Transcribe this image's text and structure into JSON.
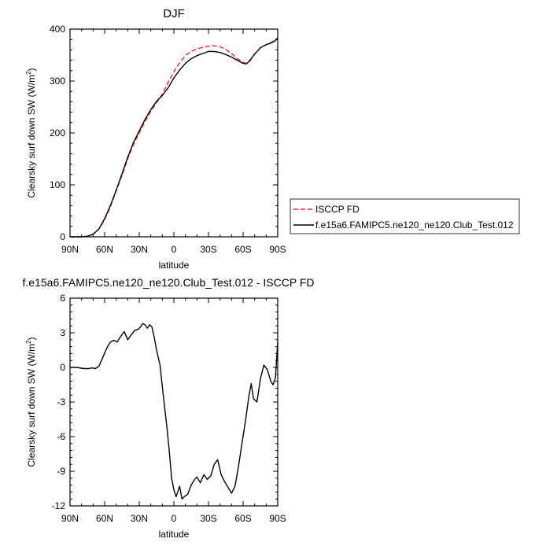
{
  "chart_data": [
    {
      "type": "line",
      "title": "DJF",
      "xlabel": "latitude",
      "ylabel_main": "Clearsky surf down SW (W/m",
      "ylabel_sup": "2",
      "ylabel_end": ")",
      "x_ticks": [
        -90,
        -60,
        -30,
        0,
        30,
        60,
        90
      ],
      "x_tick_labels": [
        "90N",
        "60N",
        "30N",
        "0",
        "30S",
        "60S",
        "90S"
      ],
      "xlim": [
        -90,
        90
      ],
      "ylim": [
        0,
        400
      ],
      "y_ticks": [
        0,
        100,
        200,
        300,
        400
      ],
      "y_tick_labels": [
        "0",
        "100",
        "200",
        "300",
        "400"
      ],
      "legend_position": "right",
      "series": [
        {
          "name": "ISCCP FD",
          "color": "#e8262a",
          "style": "dashed",
          "x": [
            -90,
            -80,
            -75,
            -70,
            -65,
            -60,
            -55,
            -50,
            -45,
            -40,
            -35,
            -30,
            -25,
            -20,
            -15,
            -10,
            -5,
            0,
            5,
            10,
            15,
            20,
            25,
            30,
            35,
            40,
            45,
            50,
            55,
            60,
            63,
            66,
            70,
            75,
            80,
            85,
            88,
            90
          ],
          "y": [
            0,
            0,
            1,
            5,
            15,
            33,
            58,
            88,
            118,
            150,
            178,
            200,
            222,
            242,
            258,
            275,
            297,
            318,
            335,
            349,
            357,
            362,
            365,
            367,
            368,
            366,
            361,
            353,
            343,
            336,
            334,
            339,
            352,
            364,
            370,
            375,
            380,
            383
          ]
        },
        {
          "name": "f.e15a6.FAMIPC5.ne120_ne120.Club_Test.012",
          "color": "#000000",
          "style": "solid",
          "x": [
            -90,
            -80,
            -75,
            -70,
            -65,
            -60,
            -55,
            -50,
            -45,
            -40,
            -35,
            -30,
            -25,
            -20,
            -15,
            -10,
            -5,
            0,
            5,
            10,
            15,
            20,
            25,
            30,
            35,
            40,
            45,
            50,
            55,
            60,
            63,
            66,
            70,
            75,
            80,
            85,
            88,
            90
          ],
          "y": [
            0,
            0,
            1,
            5,
            15,
            35,
            60,
            90,
            121,
            153,
            182,
            204,
            226,
            245,
            261,
            272,
            287,
            306,
            321,
            334,
            343,
            349,
            353,
            357,
            357,
            355,
            351,
            346,
            340,
            334,
            333,
            340,
            352,
            364,
            370,
            374,
            378,
            383
          ]
        }
      ]
    },
    {
      "type": "line",
      "title": "f.e15a6.FAMIPC5.ne120_ne120.Club_Test.012 - ISCCP FD",
      "xlabel": "latitude",
      "ylabel_main": "Clearsky surf down SW (W/m",
      "ylabel_sup": "2",
      "ylabel_end": ")",
      "x_ticks": [
        -90,
        -60,
        -30,
        0,
        30,
        60,
        90
      ],
      "x_tick_labels": [
        "90N",
        "60N",
        "30N",
        "0",
        "30S",
        "60S",
        "90S"
      ],
      "xlim": [
        -90,
        90
      ],
      "ylim": [
        -12,
        6
      ],
      "y_ticks": [
        -12,
        -9,
        -6,
        -3,
        0,
        3,
        6
      ],
      "y_tick_labels": [
        "-12",
        "-9",
        "-6",
        "-3",
        "0",
        "3",
        "6"
      ],
      "series": [
        {
          "name": "",
          "color": "#000000",
          "style": "solid",
          "x": [
            -90,
            -84,
            -78,
            -74,
            -71,
            -68,
            -65,
            -61,
            -58,
            -55,
            -52,
            -49,
            -46,
            -43,
            -40,
            -37,
            -34,
            -31,
            -29,
            -27,
            -25,
            -23,
            -21,
            -19,
            -17,
            -15,
            -12,
            -9,
            -6,
            -4,
            -2,
            0,
            2,
            5,
            7,
            9,
            12,
            15,
            18,
            20,
            23,
            26,
            29,
            32,
            35,
            38,
            41,
            44,
            47,
            50,
            53,
            56,
            59,
            62,
            65,
            67,
            69,
            72,
            75,
            78,
            81,
            84,
            86,
            88,
            90
          ],
          "y": [
            0,
            0,
            -0.1,
            -0.1,
            -0.05,
            -0.1,
            0.1,
            1.0,
            1.7,
            2.2,
            2.35,
            2.2,
            2.7,
            3.1,
            2.4,
            2.8,
            3.2,
            3.3,
            3.5,
            3.8,
            3.7,
            3.4,
            3.7,
            3.5,
            2.6,
            1.5,
            0.2,
            -2.6,
            -5.2,
            -7.2,
            -9.6,
            -10.6,
            -11.2,
            -10.3,
            -11.4,
            -11.2,
            -11.0,
            -10.2,
            -9.7,
            -9.5,
            -10.0,
            -9.3,
            -9.7,
            -9.4,
            -8.4,
            -8.0,
            -9.3,
            -9.9,
            -10.4,
            -10.9,
            -10.3,
            -8.6,
            -6.6,
            -4.7,
            -2.5,
            -1.4,
            -2.7,
            -3.0,
            -1.0,
            0.2,
            -0.2,
            -1.2,
            -1.5,
            -0.9,
            2.2
          ]
        }
      ]
    }
  ],
  "legend": {
    "items": [
      {
        "label": "ISCCP FD",
        "color": "#e8262a",
        "style": "dashed"
      },
      {
        "label": "f.e15a6.FAMIPC5.ne120_ne120.Club_Test.012",
        "color": "#000000",
        "style": "solid"
      }
    ]
  }
}
